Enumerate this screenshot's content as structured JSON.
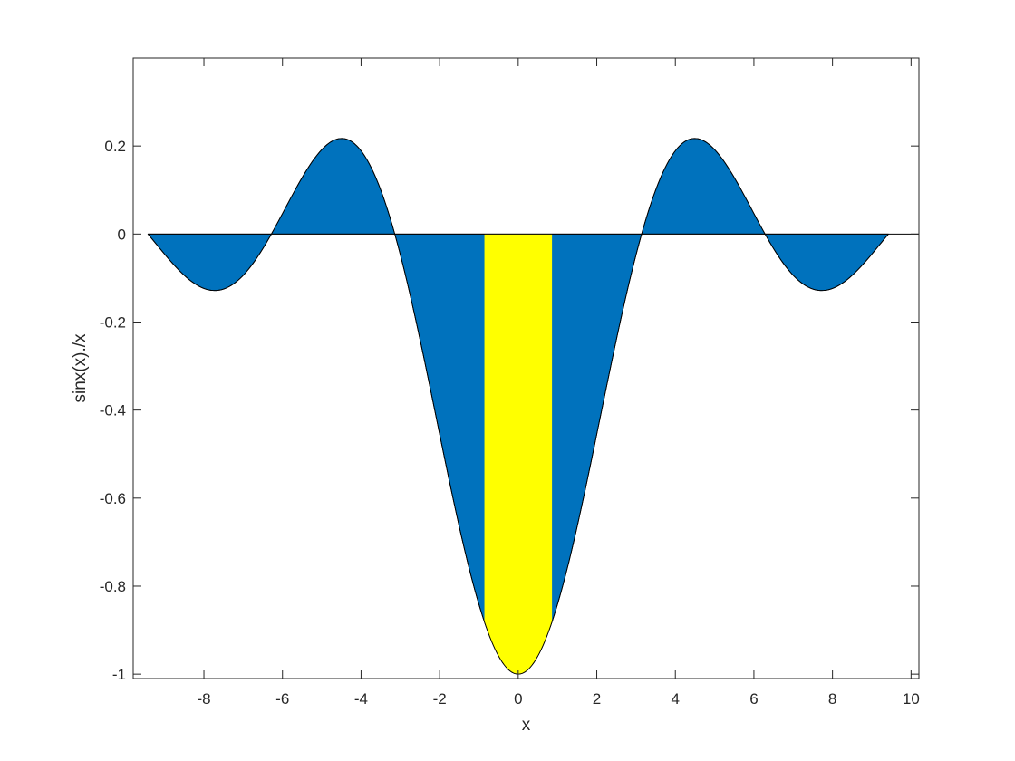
{
  "chart_data": {
    "type": "area",
    "function": "sinx(x)./x",
    "xlabel": "x",
    "ylabel": "sinx(x)./x",
    "xlim": [
      -9.8,
      10.2
    ],
    "ylim": [
      -1.01,
      0.4
    ],
    "x_ticks": [
      -8,
      -6,
      -4,
      -2,
      0,
      2,
      4,
      6,
      8,
      10
    ],
    "x_tick_labels": [
      "-8",
      "-6",
      "-4",
      "-2",
      "0",
      "2",
      "4",
      "6",
      "8",
      "10"
    ],
    "y_ticks": [
      -1,
      -0.8,
      -0.6,
      -0.4,
      -0.2,
      0,
      0.2
    ],
    "y_tick_labels": [
      "-1",
      "-0.8",
      "-0.6",
      "-0.4",
      "-0.2",
      "0",
      "0.2"
    ],
    "grid": false,
    "box": true,
    "series": [
      {
        "range": [
          -9.4248,
          9.4248
        ],
        "samples": 401,
        "color": "#0072bd",
        "x": [
          -9.4248,
          -8.9536,
          -8.4823,
          -7.854,
          -7.7253,
          -7.2257,
          -6.2832,
          -5.4978,
          -4.7124,
          -4.4934,
          -3.927,
          -3.1416,
          -2.3562,
          -1.5708,
          -0.9,
          0,
          0.9,
          1.5708,
          2.3562,
          3.1416,
          3.927,
          4.4934,
          4.7124,
          5.4978,
          6.2832,
          7.2257,
          7.7253,
          7.854,
          8.4823,
          8.9536,
          9.4248
        ],
        "y": [
          0,
          -0.0524,
          -0.0952,
          -0.1273,
          -0.1284,
          -0.1152,
          0,
          0.1286,
          0.2122,
          0.2172,
          0.1801,
          0,
          -0.3001,
          -0.6366,
          -0.8704,
          -1,
          -0.8704,
          -0.6366,
          -0.3001,
          0,
          0.1801,
          0.2172,
          0.2122,
          0.1286,
          0,
          -0.1152,
          -0.1284,
          -0.1273,
          -0.0952,
          -0.0524,
          0
        ]
      },
      {
        "range": [
          -0.86,
          0.86
        ],
        "samples": 81,
        "color": "#ffff00",
        "x": [
          -0.86,
          -0.6,
          -0.3,
          0,
          0.3,
          0.6,
          0.86
        ],
        "y": [
          -0.8812,
          -0.941,
          -0.985,
          -1,
          -0.985,
          -0.941,
          -0.8812
        ]
      }
    ]
  }
}
